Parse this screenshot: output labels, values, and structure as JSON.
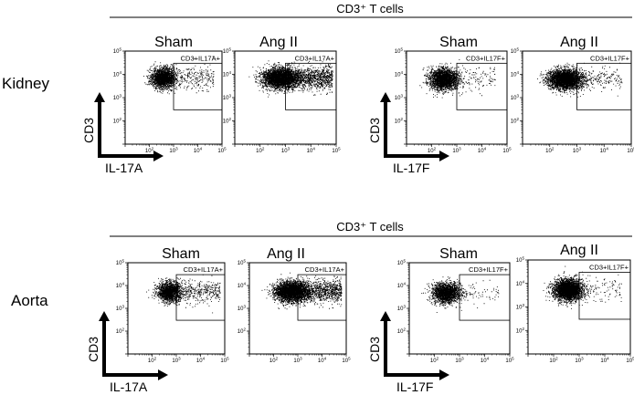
{
  "colors": {
    "ink": "#000000",
    "background": "#ffffff"
  },
  "chart_data": {
    "type": "scatter",
    "panels": [
      {
        "header": "CD3⁺ T cells",
        "row_label": "Kidney",
        "groups": [
          {
            "x_axis_label": "IL-17A",
            "y_axis_label": "CD3",
            "plots": [
              {
                "title": "Sham",
                "gate_label": "CD3+IL17A+",
                "gate_x": [
                  1000,
                  100000
                ],
                "gate_y": [
                  300,
                  30000
                ]
              },
              {
                "title": "Ang II",
                "gate_label": "CD3+IL17A+",
                "gate_x": [
                  1000,
                  100000
                ],
                "gate_y": [
                  300,
                  30000
                ]
              }
            ]
          },
          {
            "x_axis_label": "IL-17F",
            "y_axis_label": "CD3",
            "plots": [
              {
                "title": "Sham",
                "gate_label": "CD3+IL17F+",
                "gate_x": [
                  1000,
                  100000
                ],
                "gate_y": [
                  300,
                  30000
                ]
              },
              {
                "title": "Ang II",
                "gate_label": "CD3+IL17F+",
                "gate_x": [
                  1000,
                  100000
                ],
                "gate_y": [
                  300,
                  30000
                ]
              }
            ]
          }
        ]
      },
      {
        "header": "CD3⁺ T cells",
        "row_label": "Aorta",
        "groups": [
          {
            "x_axis_label": "IL-17A",
            "y_axis_label": "CD3",
            "plots": [
              {
                "title": "Sham",
                "gate_label": "CD3+IL17A+",
                "gate_x": [
                  1000,
                  100000
                ],
                "gate_y": [
                  300,
                  30000
                ]
              },
              {
                "title": "Ang II",
                "gate_label": "CD3+IL17A+",
                "gate_x": [
                  1000,
                  100000
                ],
                "gate_y": [
                  300,
                  30000
                ]
              }
            ]
          },
          {
            "x_axis_label": "IL-17F",
            "y_axis_label": "CD3",
            "plots": [
              {
                "title": "Sham",
                "gate_label": "CD3+IL17F+",
                "gate_x": [
                  1000,
                  100000
                ],
                "gate_y": [
                  300,
                  30000
                ]
              },
              {
                "title": "Ang II",
                "gate_label": "CD3+IL17F+",
                "gate_x": [
                  1000,
                  100000
                ],
                "gate_y": [
                  300,
                  30000
                ]
              }
            ]
          }
        ]
      }
    ],
    "x_scale": "log",
    "xlim": [
      10,
      100000
    ],
    "x_ticks": [
      100,
      1000,
      10000,
      100000
    ],
    "y_scale": "log",
    "ylim": [
      10,
      100000
    ],
    "y_ticks": [
      100,
      1000,
      10000,
      100000
    ],
    "grid": false,
    "legend": "none"
  }
}
